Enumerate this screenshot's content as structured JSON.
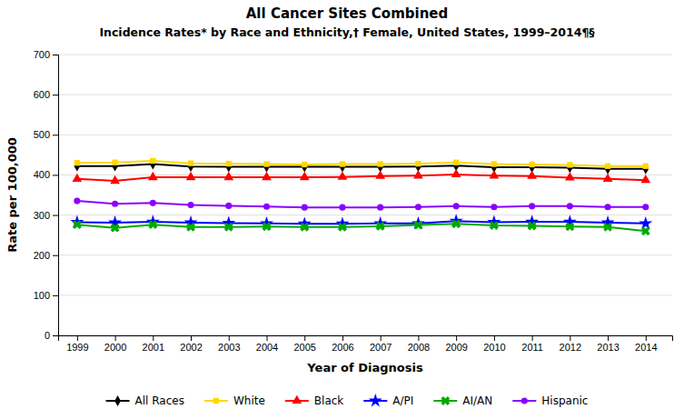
{
  "chart_data": {
    "type": "line",
    "title": "All Cancer Sites Combined",
    "subtitle": "Incidence Rates* by Race and Ethnicity,† Female, United States, 1999–2014¶§",
    "x_label": "Year of Diagnosis",
    "y_label": "Rate per 100,000",
    "x": [
      1999,
      2000,
      2001,
      2002,
      2003,
      2004,
      2005,
      2006,
      2007,
      2008,
      2009,
      2010,
      2011,
      2012,
      2013,
      2014
    ],
    "xlim": [
      1998.5,
      2014.7
    ],
    "xticks": [
      1999,
      2000,
      2001,
      2002,
      2003,
      2004,
      2005,
      2006,
      2007,
      2008,
      2009,
      2010,
      2011,
      2012,
      2013,
      2014
    ],
    "ylim": [
      0,
      700
    ],
    "yticks": [
      0,
      100,
      200,
      300,
      400,
      500,
      600,
      700
    ],
    "grid": true,
    "legend": "bottom",
    "series": [
      {
        "name": "All Races",
        "color": "#000000",
        "marker": "diamond",
        "values": [
          422,
          422,
          427,
          421,
          420,
          420,
          420,
          420,
          420,
          421,
          423,
          419,
          419,
          418,
          415,
          415
        ]
      },
      {
        "name": "White",
        "color": "#FFD700",
        "marker": "square",
        "values": [
          430,
          431,
          435,
          429,
          428,
          427,
          426,
          427,
          427,
          428,
          431,
          427,
          426,
          425,
          422,
          422
        ]
      },
      {
        "name": "Black",
        "color": "#FF0000",
        "marker": "triangle",
        "values": [
          390,
          385,
          394,
          394,
          394,
          394,
          394,
          395,
          397,
          398,
          401,
          398,
          397,
          393,
          390,
          387
        ]
      },
      {
        "name": "A/PI",
        "color": "#0000FF",
        "marker": "star",
        "values": [
          282,
          281,
          283,
          281,
          280,
          279,
          278,
          278,
          279,
          279,
          285,
          282,
          283,
          283,
          281,
          279
        ]
      },
      {
        "name": "AI/AN",
        "color": "#00AA00",
        "marker": "x",
        "values": [
          276,
          268,
          276,
          270,
          270,
          271,
          270,
          270,
          272,
          275,
          278,
          274,
          273,
          271,
          270,
          260
        ]
      },
      {
        "name": "Hispanic",
        "color": "#8B00FF",
        "marker": "circle",
        "values": [
          335,
          328,
          330,
          325,
          323,
          321,
          319,
          319,
          319,
          320,
          322,
          320,
          322,
          322,
          320,
          320
        ]
      }
    ]
  }
}
